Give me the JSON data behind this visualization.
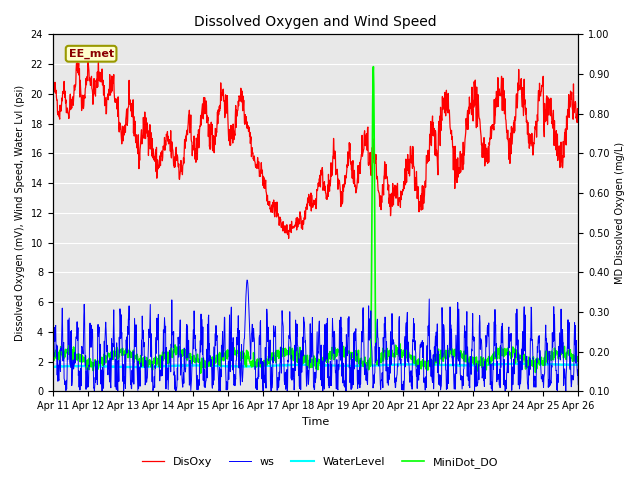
{
  "title": "Dissolved Oxygen and Wind Speed",
  "ylabel_left": "Dissolved Oxygen (mV), Wind Speed, Water Lvl (psi)",
  "ylabel_right": "MD Dissolved Oxygen (mg/L)",
  "xlabel": "Time",
  "ylim_left": [
    0,
    24
  ],
  "ylim_right": [
    0.1,
    1.0
  ],
  "yticks_left": [
    0,
    2,
    4,
    6,
    8,
    10,
    12,
    14,
    16,
    18,
    20,
    22,
    24
  ],
  "yticks_right": [
    0.1,
    0.2,
    0.3,
    0.4,
    0.5,
    0.6,
    0.7,
    0.8,
    0.9,
    1.0
  ],
  "xtick_labels": [
    "Apr 11",
    "Apr 12",
    "Apr 13",
    "Apr 14",
    "Apr 15",
    "Apr 16",
    "Apr 17",
    "Apr 18",
    "Apr 19",
    "Apr 20",
    "Apr 21",
    "Apr 22",
    "Apr 23",
    "Apr 24",
    "Apr 25",
    "Apr 26"
  ],
  "station_label": "EE_met",
  "legend_labels": [
    "DisOxy",
    "ws",
    "WaterLevel",
    "MiniDot_DO"
  ],
  "legend_colors": [
    "red",
    "blue",
    "cyan",
    "lime"
  ],
  "background_color": "#e8e8e8",
  "grid_color": "white",
  "title_fontsize": 10,
  "label_fontsize": 7,
  "tick_fontsize": 7
}
